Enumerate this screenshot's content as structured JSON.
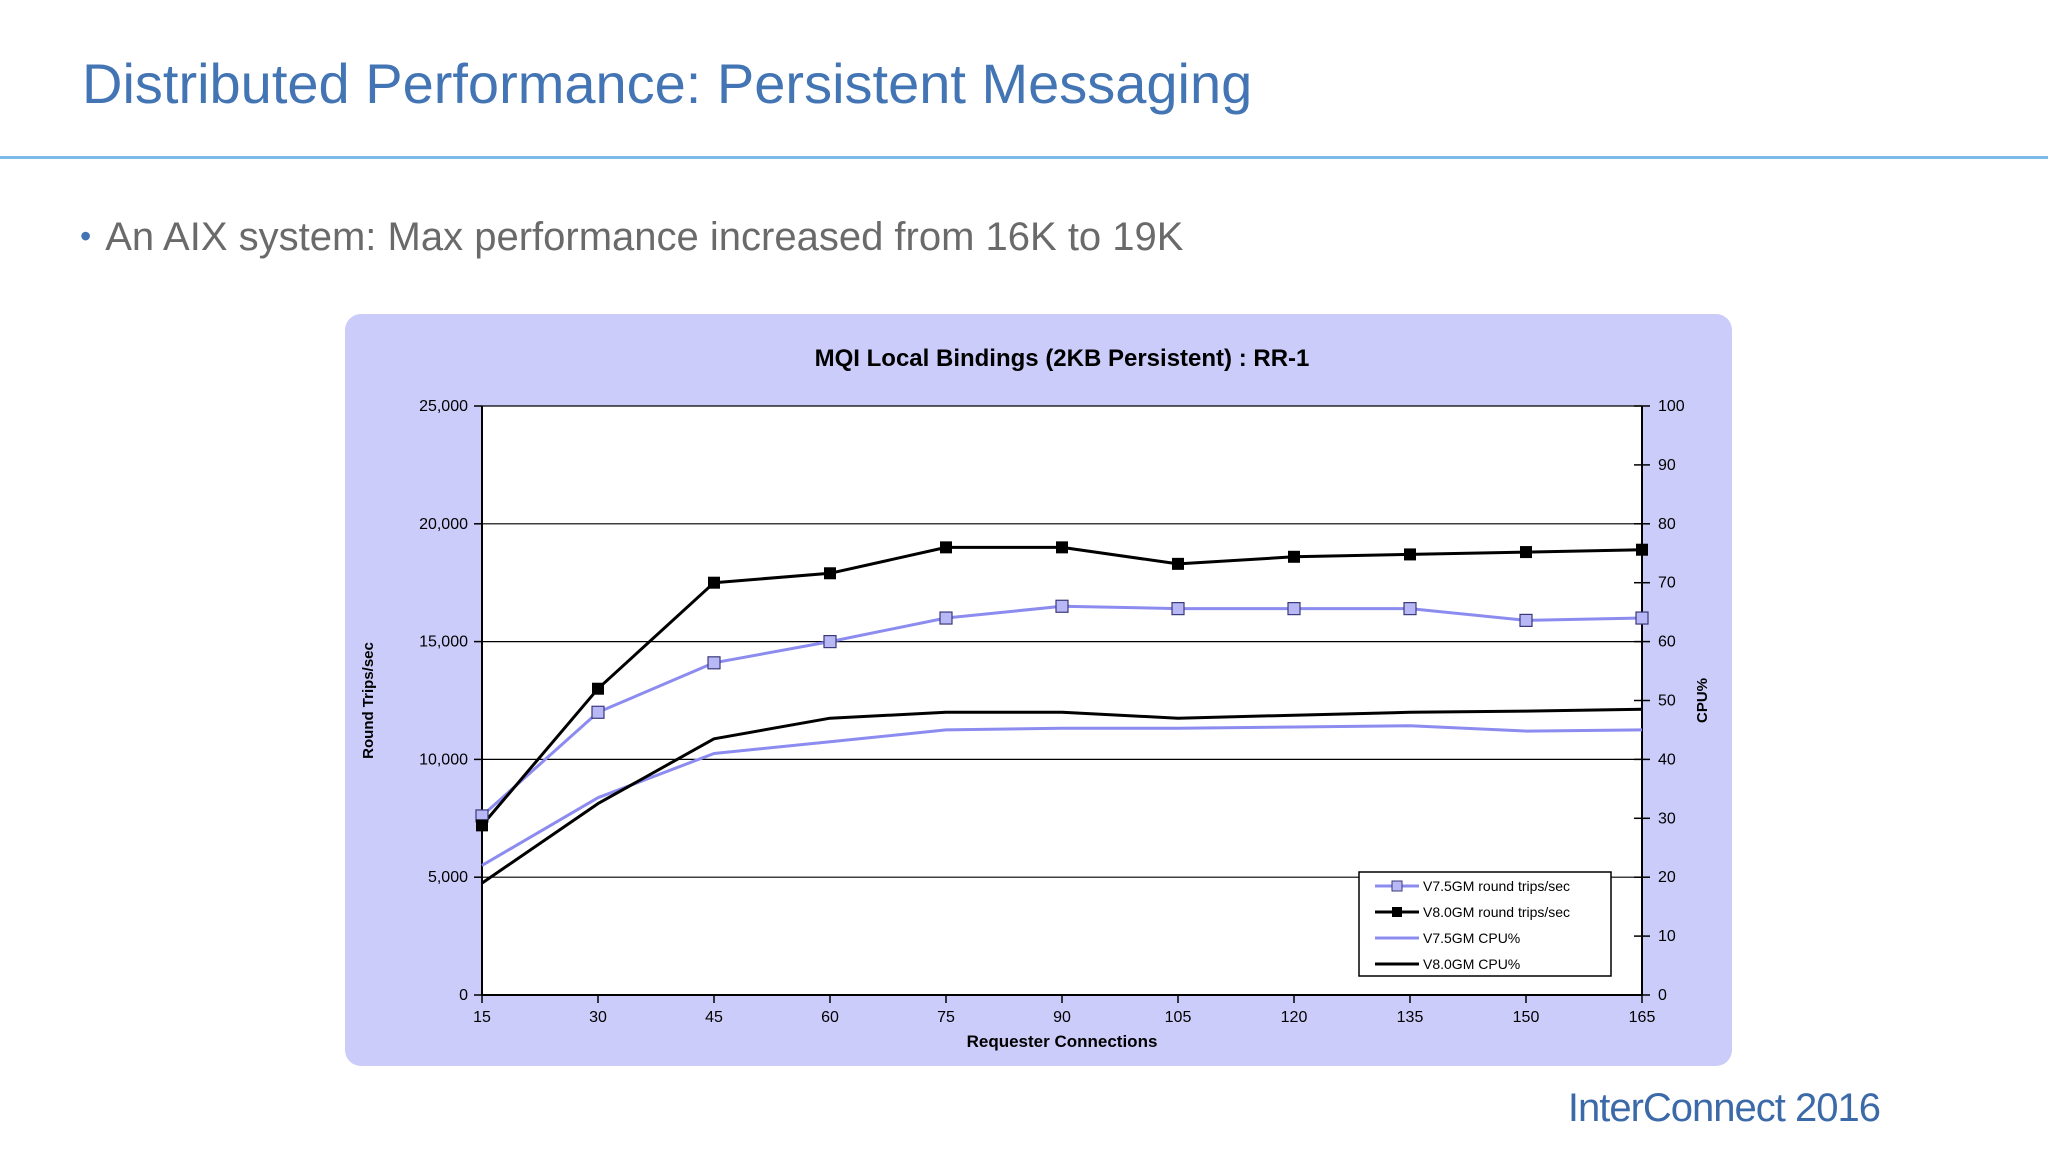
{
  "slide": {
    "title": "Distributed Performance: Persistent Messaging",
    "bullet": "An AIX system: Max performance increased from 16K to 19K",
    "footer": "InterConnect 2016"
  },
  "chart_data": {
    "type": "line",
    "title": "MQI Local Bindings (2KB Persistent) : RR-1",
    "xlabel": "Requester Connections",
    "ylabel": "Round Trips/sec",
    "y2label": "CPU%",
    "x": [
      15,
      30,
      45,
      60,
      75,
      90,
      105,
      120,
      135,
      150,
      165
    ],
    "x_tick_labels": [
      "15",
      "30",
      "45",
      "60",
      "75",
      "90",
      "105",
      "120",
      "135",
      "150",
      "165"
    ],
    "ylim": [
      0,
      25000
    ],
    "y_tick_labels": [
      "0",
      "5,000",
      "10,000",
      "15,000",
      "20,000",
      "25,000"
    ],
    "y2lim": [
      0,
      100
    ],
    "y2_tick_labels": [
      "0",
      "10",
      "20",
      "30",
      "40",
      "50",
      "60",
      "70",
      "80",
      "90",
      "100"
    ],
    "grid": "horizontal major lines",
    "legend_position": "bottom-right",
    "series": [
      {
        "name": "V7.5GM round trips/sec",
        "axis": "left",
        "color": "#8c8cf0",
        "marker": "square-open",
        "values": [
          7600,
          12000,
          14100,
          15000,
          16000,
          16500,
          16400,
          16400,
          16400,
          15900,
          16000
        ]
      },
      {
        "name": "V8.0GM round trips/sec",
        "axis": "left",
        "color": "#000000",
        "marker": "square-filled",
        "values": [
          7200,
          13000,
          17500,
          17900,
          19000,
          19000,
          18300,
          18600,
          18700,
          18800,
          18900
        ]
      },
      {
        "name": "V7.5GM CPU%",
        "axis": "right",
        "color": "#8c8cf0",
        "marker": "none",
        "values": [
          22,
          33.5,
          41,
          43,
          45,
          45.3,
          45.3,
          45.5,
          45.7,
          44.8,
          45
        ]
      },
      {
        "name": "V8.0GM CPU%",
        "axis": "right",
        "color": "#000000",
        "marker": "none",
        "values": [
          19,
          32.5,
          43.5,
          47,
          48,
          48,
          47,
          47.5,
          48,
          48.2,
          48.5
        ]
      }
    ]
  }
}
